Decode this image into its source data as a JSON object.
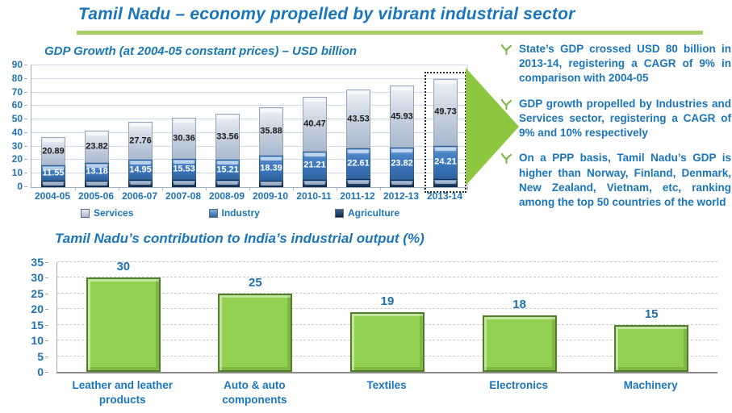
{
  "slide_title": "Tamil Nadu – economy propelled by vibrant industrial sector",
  "accent_colors": {
    "title_blue": "#1b75bc",
    "axis_label_blue": "#2272b5",
    "green_accent": "#8dc63f",
    "green_bar": "#92d050",
    "services_fill": "#b9c5d8",
    "industry_fill": "#3a74b8",
    "agriculture_fill": "#16365c"
  },
  "bullets": [
    {
      "text": "State’s GDP crossed USD 80 billion in 2013-14, registering a CAGR of 9% in comparison with 2004-05"
    },
    {
      "text": "GDP growth propelled by Industries and Services sector, registering a CAGR of 9% and 10% respectively"
    },
    {
      "text": "On a PPP basis, Tamil Nadu’s GDP is higher than Norway, Finland, Denmark, New Zealand, Vietnam, etc, ranking among the top 50 countries of the world"
    }
  ],
  "chart_data": [
    {
      "type": "bar",
      "subtype": "stacked",
      "title": "GDP Growth (at 2004-05 constant prices) – USD billion",
      "categories": [
        "2004-05",
        "2005-06",
        "2006-07",
        "2007-08",
        "2008-09",
        "2009-10",
        "2010-11",
        "2011-12",
        "2012-13",
        "2013-14"
      ],
      "series": [
        {
          "name": "Agriculture",
          "values": [
            4.5,
            5.0,
            5.3,
            5.1,
            5.2,
            4.7,
            5.3,
            5.9,
            5.3,
            6.1
          ],
          "labels_shown": false,
          "note": "segment heights estimated from gridlines; no data labels printed"
        },
        {
          "name": "Industry",
          "values": [
            11.55,
            13.18,
            14.95,
            15.53,
            15.21,
            18.39,
            21.21,
            22.61,
            23.82,
            24.21
          ],
          "labels_shown": true
        },
        {
          "name": "Services",
          "values": [
            20.89,
            23.82,
            27.76,
            30.36,
            33.56,
            35.88,
            40.47,
            43.53,
            45.93,
            49.73
          ],
          "labels_shown": true
        }
      ],
      "legend": [
        "Services",
        "Industry",
        "Agriculture"
      ],
      "legend_position": "bottom",
      "ylim": [
        0,
        90
      ],
      "yticks": [
        0,
        10,
        20,
        30,
        40,
        50,
        60,
        70,
        80,
        90
      ],
      "grid": true,
      "highlight_category": "2013-14"
    },
    {
      "type": "bar",
      "title": "Tamil Nadu’s contribution to India’s industrial output (%)",
      "categories": [
        "Leather and leather products",
        "Auto & auto components",
        "Textiles",
        "Electronics",
        "Machinery"
      ],
      "values": [
        30,
        25,
        19,
        18,
        15
      ],
      "ylim": [
        0,
        35
      ],
      "yticks": [
        0,
        5,
        10,
        15,
        20,
        25,
        30,
        35
      ],
      "grid": true,
      "grid_style": "dashed"
    }
  ]
}
